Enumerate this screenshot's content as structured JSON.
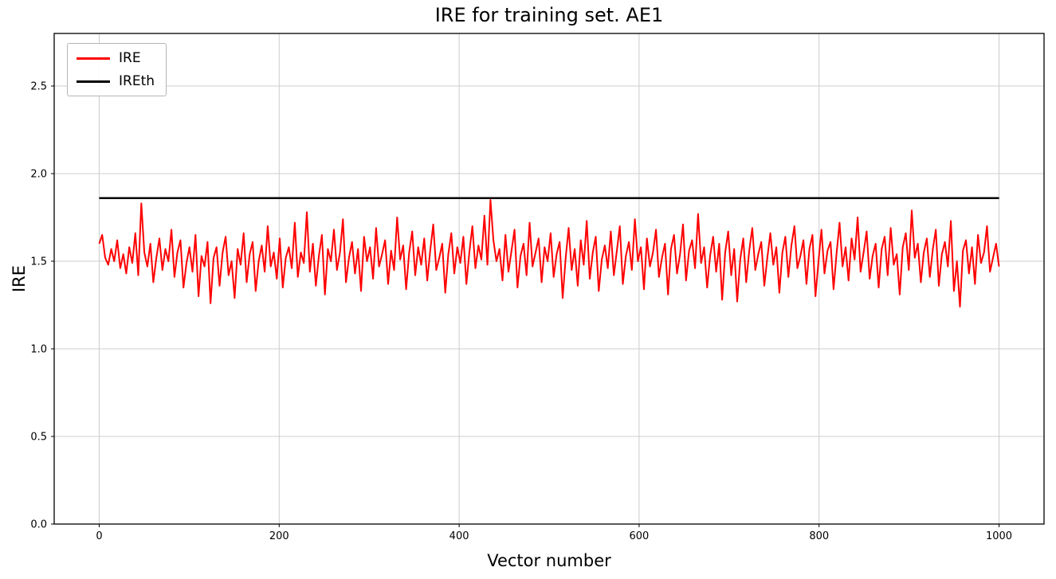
{
  "title": "IRE for training set. AE1",
  "xlabel": "Vector number",
  "ylabel": "IRE",
  "legend": {
    "position": "upper left",
    "items": [
      {
        "label": "IRE",
        "color": "#ff0000"
      },
      {
        "label": "IREth",
        "color": "#000000"
      }
    ]
  },
  "colors": {
    "ire_line": "#ff0000",
    "ireth_line": "#000000",
    "grid": "#cccccc",
    "background": "#ffffff",
    "text": "#000000"
  },
  "chart_data": {
    "type": "line",
    "title": "IRE for training set. AE1",
    "xlabel": "Vector number",
    "ylabel": "IRE",
    "xlim": [
      -50,
      1050
    ],
    "ylim": [
      0,
      2.8
    ],
    "xticks": [
      0,
      200,
      400,
      600,
      800,
      1000
    ],
    "xtick_labels": [
      "0",
      "200",
      "400",
      "600",
      "800",
      "1000"
    ],
    "yticks": [
      0.0,
      0.5,
      1.0,
      1.5,
      2.0,
      2.5
    ],
    "ytick_labels": [
      "0.0",
      "0.5",
      "1.0",
      "1.5",
      "2.0",
      "2.5"
    ],
    "grid": true,
    "legend_position": "upper left",
    "series": [
      {
        "name": "IRE",
        "color": "#ff0000",
        "x_start": 0,
        "x_end": 1000,
        "values": [
          1.6,
          1.65,
          1.52,
          1.48,
          1.57,
          1.5,
          1.62,
          1.46,
          1.54,
          1.43,
          1.58,
          1.49,
          1.66,
          1.42,
          1.83,
          1.55,
          1.47,
          1.6,
          1.38,
          1.52,
          1.63,
          1.45,
          1.57,
          1.5,
          1.68,
          1.41,
          1.55,
          1.62,
          1.35,
          1.49,
          1.58,
          1.44,
          1.65,
          1.3,
          1.53,
          1.47,
          1.61,
          1.26,
          1.52,
          1.58,
          1.36,
          1.55,
          1.64,
          1.42,
          1.5,
          1.29,
          1.57,
          1.48,
          1.66,
          1.38,
          1.54,
          1.61,
          1.33,
          1.5,
          1.59,
          1.44,
          1.7,
          1.47,
          1.55,
          1.4,
          1.63,
          1.35,
          1.52,
          1.58,
          1.46,
          1.72,
          1.41,
          1.55,
          1.49,
          1.78,
          1.44,
          1.6,
          1.36,
          1.53,
          1.65,
          1.31,
          1.57,
          1.5,
          1.68,
          1.45,
          1.55,
          1.74,
          1.38,
          1.52,
          1.61,
          1.43,
          1.57,
          1.33,
          1.64,
          1.5,
          1.58,
          1.4,
          1.69,
          1.47,
          1.54,
          1.62,
          1.37,
          1.56,
          1.45,
          1.75,
          1.51,
          1.59,
          1.34,
          1.55,
          1.67,
          1.42,
          1.58,
          1.48,
          1.63,
          1.39,
          1.56,
          1.71,
          1.45,
          1.52,
          1.6,
          1.32,
          1.54,
          1.66,
          1.43,
          1.58,
          1.49,
          1.64,
          1.37,
          1.55,
          1.7,
          1.46,
          1.59,
          1.51,
          1.76,
          1.48,
          1.85,
          1.62,
          1.5,
          1.57,
          1.39,
          1.65,
          1.44,
          1.56,
          1.68,
          1.35,
          1.53,
          1.6,
          1.42,
          1.72,
          1.47,
          1.55,
          1.63,
          1.38,
          1.58,
          1.5,
          1.66,
          1.41,
          1.54,
          1.61,
          1.29,
          1.52,
          1.69,
          1.45,
          1.57,
          1.36,
          1.62,
          1.48,
          1.73,
          1.4,
          1.55,
          1.64,
          1.33,
          1.51,
          1.59,
          1.46,
          1.67,
          1.42,
          1.56,
          1.7,
          1.37,
          1.53,
          1.61,
          1.45,
          1.74,
          1.5,
          1.58,
          1.34,
          1.63,
          1.47,
          1.55,
          1.68,
          1.41,
          1.52,
          1.6,
          1.31,
          1.57,
          1.65,
          1.43,
          1.54,
          1.71,
          1.39,
          1.56,
          1.62,
          1.46,
          1.77,
          1.49,
          1.58,
          1.35,
          1.53,
          1.64,
          1.44,
          1.6,
          1.28,
          1.55,
          1.67,
          1.42,
          1.57,
          1.27,
          1.51,
          1.63,
          1.38,
          1.56,
          1.69,
          1.45,
          1.54,
          1.61,
          1.36,
          1.52,
          1.66,
          1.48,
          1.58,
          1.32,
          1.55,
          1.64,
          1.41,
          1.59,
          1.7,
          1.46,
          1.53,
          1.62,
          1.37,
          1.57,
          1.65,
          1.3,
          1.5,
          1.68,
          1.43,
          1.56,
          1.61,
          1.34,
          1.54,
          1.72,
          1.47,
          1.58,
          1.39,
          1.63,
          1.51,
          1.75,
          1.44,
          1.55,
          1.67,
          1.4,
          1.53,
          1.6,
          1.35,
          1.57,
          1.64,
          1.42,
          1.69,
          1.48,
          1.54,
          1.31,
          1.58,
          1.66,
          1.45,
          1.79,
          1.52,
          1.6,
          1.38,
          1.55,
          1.63,
          1.41,
          1.57,
          1.68,
          1.36,
          1.54,
          1.61,
          1.47,
          1.73,
          1.33,
          1.5,
          1.24,
          1.56,
          1.62,
          1.43,
          1.58,
          1.37,
          1.65,
          1.49,
          1.55,
          1.7,
          1.44,
          1.52,
          1.6,
          1.47
        ]
      },
      {
        "name": "IREth",
        "color": "#000000",
        "type": "hline",
        "x_start": 0,
        "x_end": 1000,
        "y": 1.86
      }
    ]
  }
}
